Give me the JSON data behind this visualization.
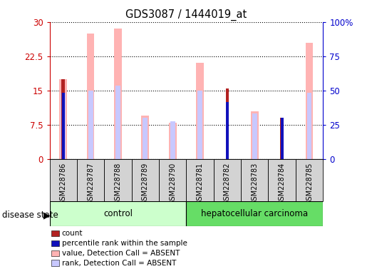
{
  "title": "GDS3087 / 1444019_at",
  "samples": [
    "GSM228786",
    "GSM228787",
    "GSM228788",
    "GSM228789",
    "GSM228790",
    "GSM228781",
    "GSM228782",
    "GSM228783",
    "GSM228784",
    "GSM228785"
  ],
  "value_absent": [
    17.5,
    27.5,
    28.5,
    9.5,
    8.0,
    21.0,
    0,
    10.5,
    0,
    25.5
  ],
  "rank_absent": [
    14.5,
    15.0,
    16.0,
    9.0,
    8.2,
    15.0,
    0,
    10.0,
    0,
    14.5
  ],
  "count": [
    17.5,
    0,
    0,
    0,
    0,
    0,
    15.5,
    0,
    9.0,
    0
  ],
  "percentile_rank": [
    14.5,
    0,
    0,
    0,
    0,
    0,
    12.5,
    0,
    9.0,
    0
  ],
  "ylim_left": [
    0,
    30
  ],
  "ylim_right": [
    0,
    100
  ],
  "yticks_left": [
    0,
    7.5,
    15,
    22.5,
    30
  ],
  "yticks_right": [
    0,
    25,
    50,
    75,
    100
  ],
  "ytick_labels_left": [
    "0",
    "7.5",
    "15",
    "22.5",
    "30"
  ],
  "ytick_labels_right": [
    "0",
    "25",
    "50",
    "75",
    "100%"
  ],
  "color_value_absent": "#ffb3b3",
  "color_rank_absent": "#c8c8ff",
  "color_count": "#b22222",
  "color_percentile": "#1111bb",
  "color_left_axis": "#cc0000",
  "color_right_axis": "#0000cc",
  "color_control_bg": "#ccffcc",
  "color_cancer_bg": "#66dd66",
  "color_sample_bg": "#d3d3d3",
  "legend_items": [
    "count",
    "percentile rank within the sample",
    "value, Detection Call = ABSENT",
    "rank, Detection Call = ABSENT"
  ],
  "legend_colors": [
    "#b22222",
    "#1111bb",
    "#ffb3b3",
    "#c8c8ff"
  ],
  "n_control": 5,
  "n_cancer": 5
}
